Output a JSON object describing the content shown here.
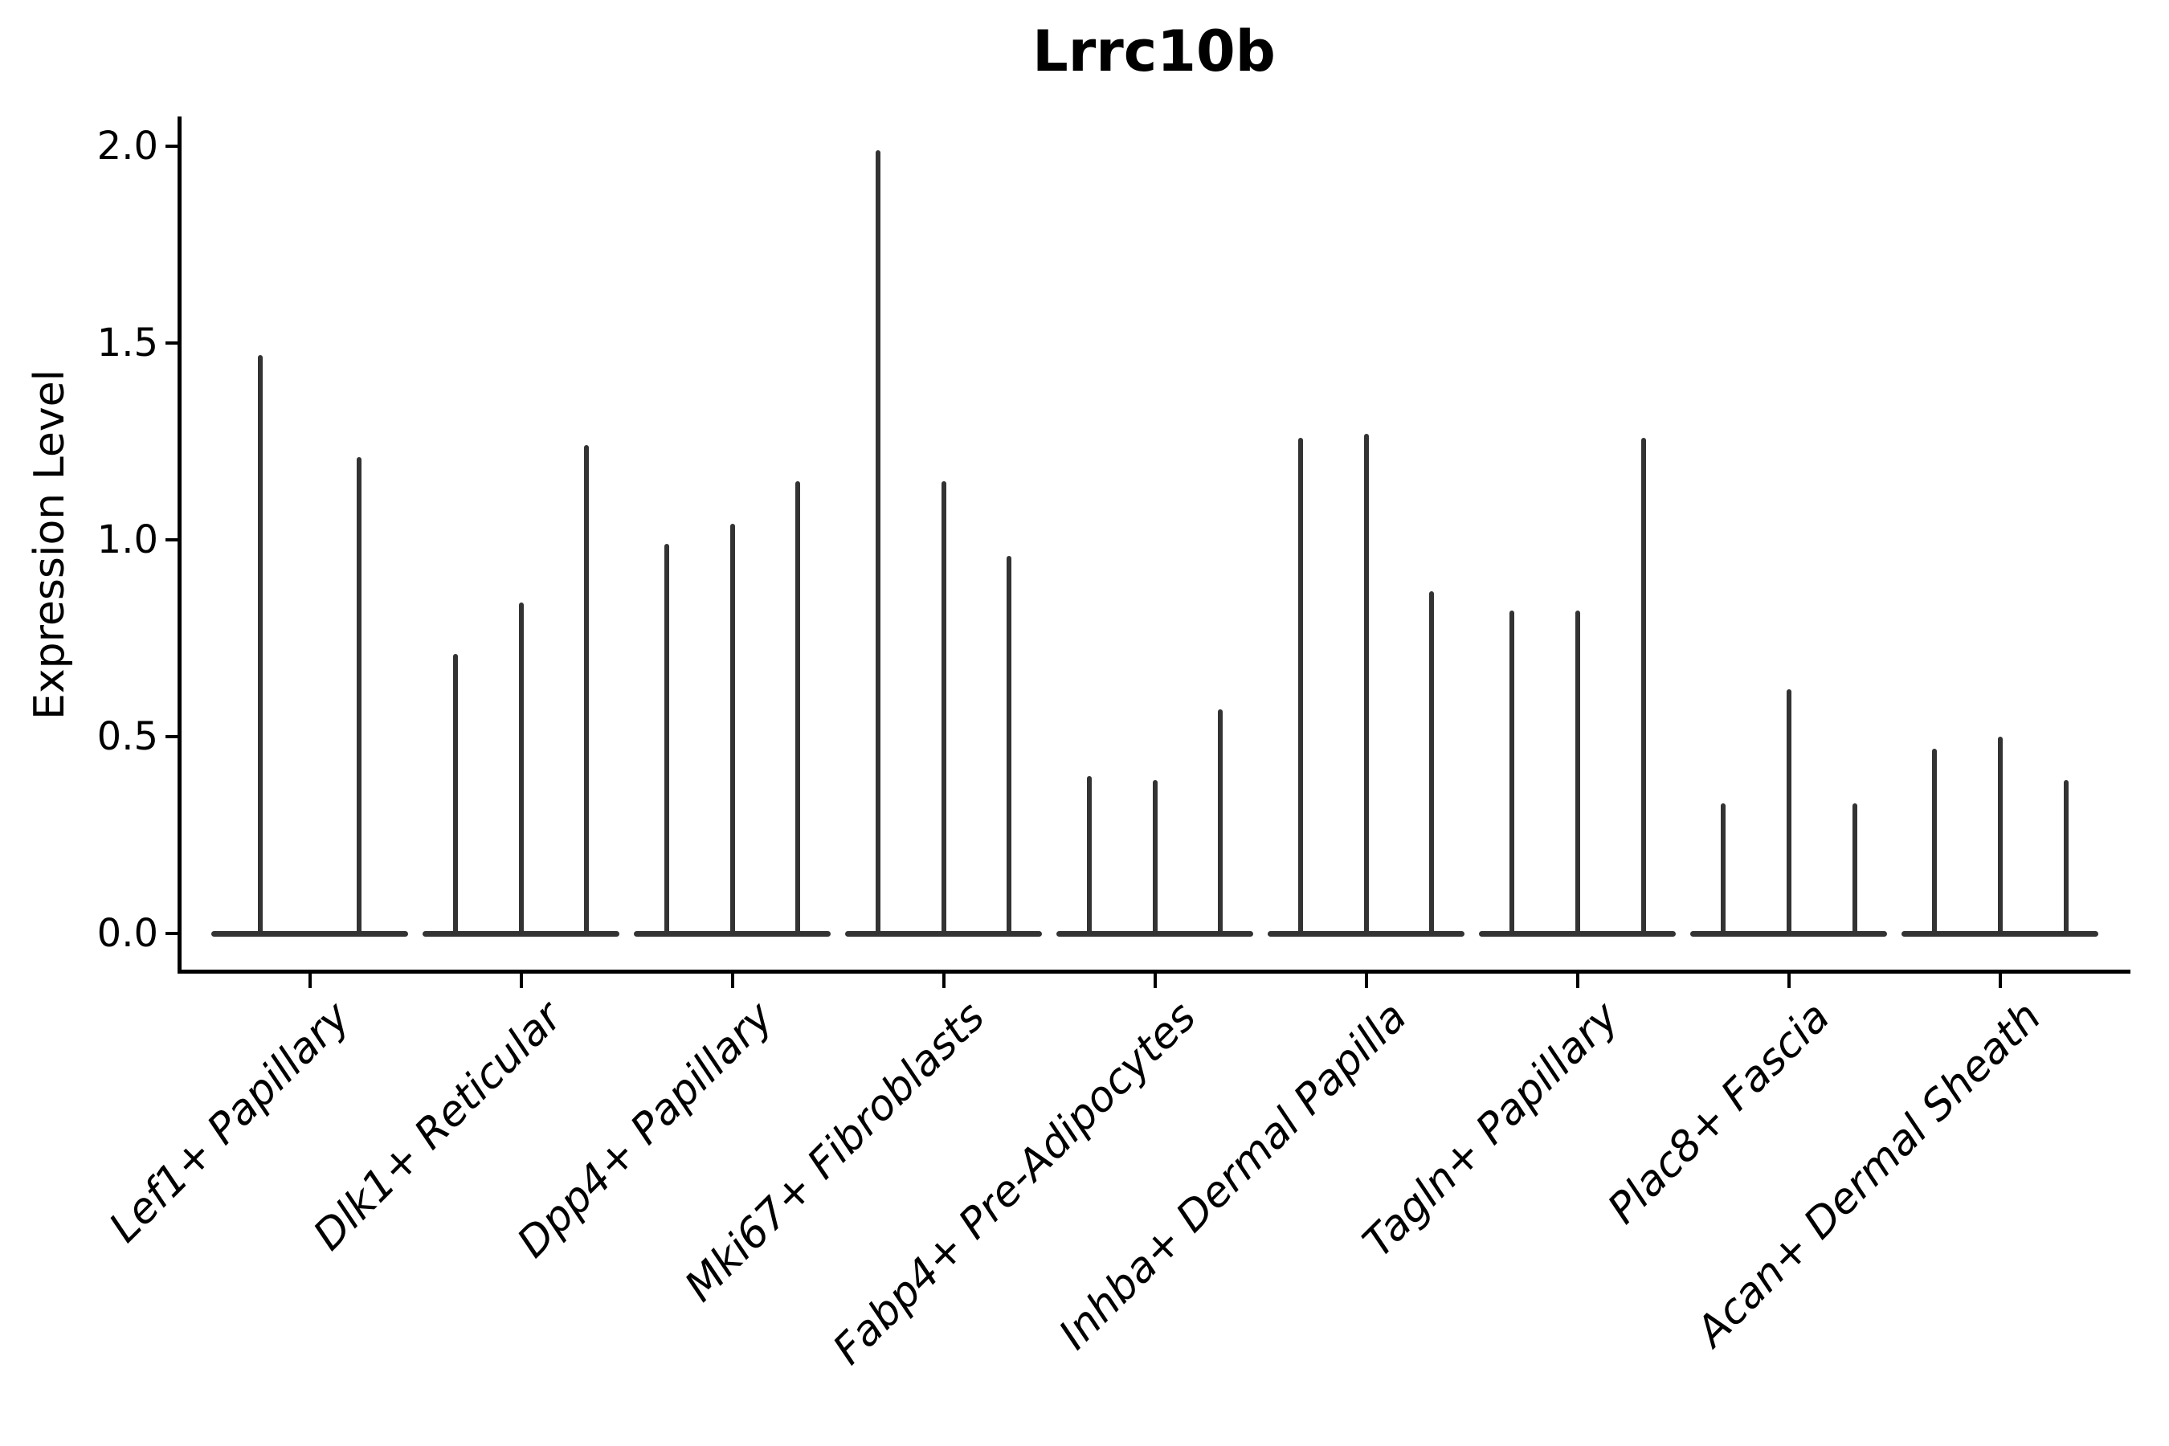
{
  "style": {
    "violin_color": "#333333",
    "axis_color": "#000000",
    "background_color": "#ffffff",
    "text_color": "#000000"
  },
  "chart_data": {
    "type": "violin",
    "title": "Lrrc10b",
    "ylabel": "Expression Level",
    "xlabel": "",
    "ylim": [
      0.0,
      2.05
    ],
    "yticks": [
      0.0,
      0.5,
      1.0,
      1.5,
      2.0
    ],
    "ytick_labels": [
      "0.0",
      "0.5",
      "1.0",
      "1.5",
      "2.0"
    ],
    "grid": false,
    "legend": false,
    "x_tick_label_rotation_deg": 45,
    "categories": [
      "Lef1+ Papillary",
      "Dlk1+ Reticular",
      "Dpp4+ Papillary",
      "Mki67+ Fibroblasts",
      "Fabp4+ Pre-Adipocytes",
      "Inhba+ Dermal Papilla",
      "Tagln+ Papillary",
      "Plac8+ Fascia",
      "Acan+ Dermal Sheath"
    ],
    "series": [
      {
        "category": "Lef1+ Papillary",
        "violin_max_expression": [
          1.47,
          1.21
        ]
      },
      {
        "category": "Dlk1+ Reticular",
        "violin_max_expression": [
          0.71,
          0.84,
          1.24
        ]
      },
      {
        "category": "Dpp4+ Papillary",
        "violin_max_expression": [
          0.99,
          1.04,
          1.15
        ]
      },
      {
        "category": "Mki67+ Fibroblasts",
        "violin_max_expression": [
          1.99,
          1.15,
          0.96
        ]
      },
      {
        "category": "Fabp4+ Pre-Adipocytes",
        "violin_max_expression": [
          0.4,
          0.39,
          0.57
        ]
      },
      {
        "category": "Inhba+ Dermal Papilla",
        "violin_max_expression": [
          1.26,
          1.27,
          0.87
        ]
      },
      {
        "category": "Tagln+ Papillary",
        "violin_max_expression": [
          0.82,
          0.82,
          1.26
        ]
      },
      {
        "category": "Plac8+ Fascia",
        "violin_max_expression": [
          0.33,
          0.62,
          0.33
        ]
      },
      {
        "category": "Acan+ Dermal Sheath",
        "violin_max_expression": [
          0.47,
          0.5,
          0.39
        ]
      }
    ],
    "violin_baseline_value": 0.0
  }
}
